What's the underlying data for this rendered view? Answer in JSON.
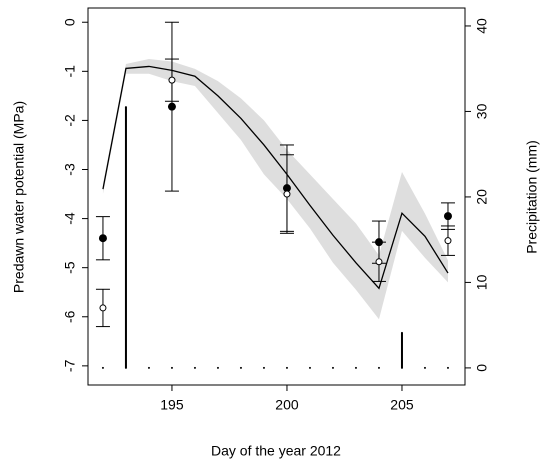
{
  "chart_data": {
    "type": "line",
    "x_label": "Day of the year 2012",
    "y_label": "Predawn water potential (MPa)",
    "y2_label": "Precipitation (mm)",
    "x": [
      192,
      193,
      194,
      195,
      196,
      197,
      198,
      199,
      200,
      201,
      202,
      203,
      204,
      205,
      206,
      207
    ],
    "model": {
      "color": "#000000",
      "values": [
        -3.4,
        -0.94,
        -0.9,
        -0.98,
        -1.1,
        -1.5,
        -1.96,
        -2.5,
        -3.1,
        -3.73,
        -4.34,
        -4.9,
        -5.42,
        -3.89,
        -4.36,
        -5.11
      ]
    },
    "band": {
      "color": "#dedede",
      "upper": [
        -3.3,
        -0.85,
        -0.75,
        -0.8,
        -0.95,
        -1.2,
        -1.55,
        -2.0,
        -2.6,
        -3.1,
        -3.6,
        -4.1,
        -4.75,
        -3.05,
        -3.9,
        -4.85
      ],
      "lower": [
        -3.5,
        -1.05,
        -1.05,
        -1.2,
        -1.3,
        -1.85,
        -2.4,
        -3.1,
        -3.6,
        -4.2,
        -4.9,
        -5.45,
        -6.05,
        -4.25,
        -4.8,
        -5.3
      ]
    },
    "observed": [
      {
        "filled": true,
        "x": [
          192,
          195,
          200,
          204,
          207
        ],
        "values": [
          -4.4,
          -1.72,
          -3.38,
          -4.48,
          -3.95
        ],
        "errors": [
          0.44,
          1.72,
          0.88,
          0.43,
          0.27
        ]
      },
      {
        "filled": false,
        "x": [
          192,
          195,
          200,
          204,
          207
        ],
        "values": [
          -5.82,
          -1.18,
          -3.5,
          -4.88,
          -4.45
        ],
        "errors": [
          0.38,
          0.43,
          0.8,
          0.4,
          0.3
        ]
      }
    ],
    "precipitation": {
      "axis": "y2",
      "color": "#000000",
      "values": [
        0,
        30.5,
        0,
        0,
        0,
        0,
        0,
        0,
        0,
        0,
        0,
        0,
        0,
        4.1,
        0,
        0
      ]
    },
    "xlim": [
      191.35,
      207.74
    ],
    "xticks": [
      195,
      200,
      205
    ],
    "ylim": [
      -7.39,
      0.29
    ],
    "yticks": [
      -7,
      -6,
      -5,
      -4,
      -3,
      -2,
      -1,
      0
    ],
    "y2lim": [
      -2,
      42.1
    ],
    "y2ticks": [
      0,
      10,
      20,
      30,
      40
    ]
  }
}
